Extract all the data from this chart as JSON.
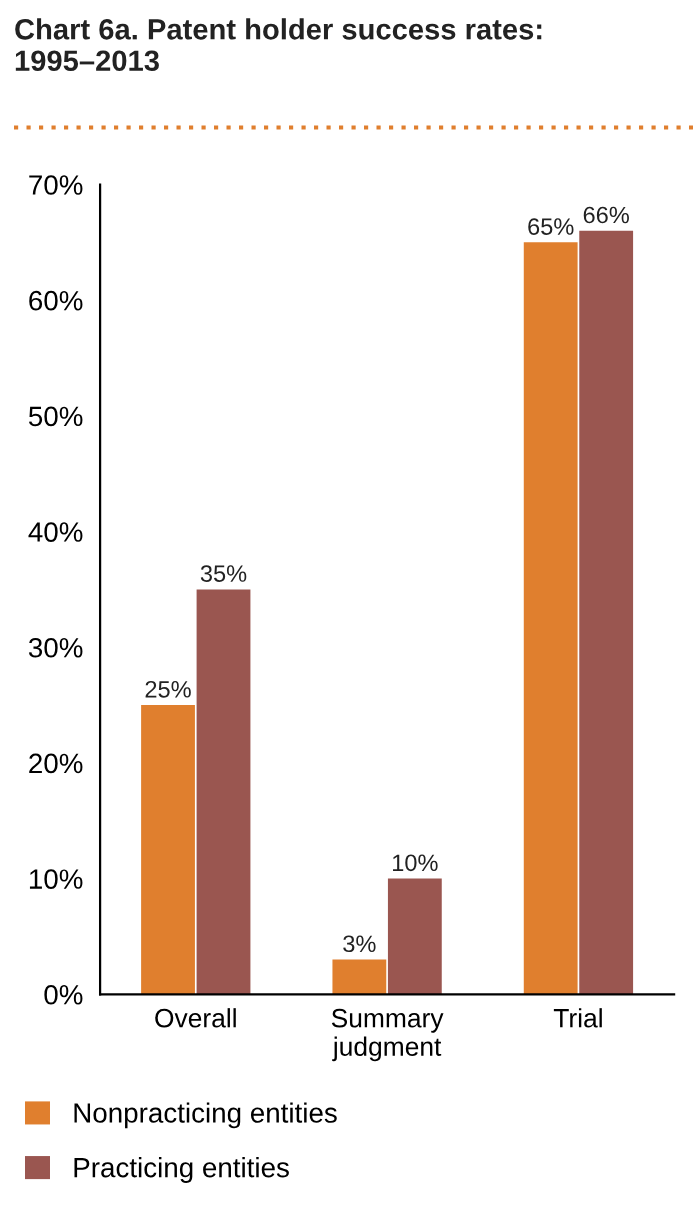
{
  "chart_data": {
    "type": "bar",
    "title": "Chart 6a. Patent holder success rates:\n1995–2013",
    "categories": [
      "Overall",
      "Summary judgment",
      "Trial"
    ],
    "series": [
      {
        "name": "Nonpracticing entities",
        "color": "#e07f2e",
        "values": [
          25,
          3,
          65
        ],
        "value_labels": [
          "25%",
          "3%",
          "65%"
        ]
      },
      {
        "name": "Practicing entities",
        "color": "#9a5650",
        "values": [
          35,
          10,
          66
        ],
        "value_labels": [
          "35%",
          "10%",
          "66%"
        ]
      }
    ],
    "ylim": [
      0,
      70
    ],
    "yticks": [
      {
        "value": 0,
        "label": "0%"
      },
      {
        "value": 10,
        "label": "10%"
      },
      {
        "value": 20,
        "label": "20%"
      },
      {
        "value": 30,
        "label": "30%"
      },
      {
        "value": 40,
        "label": "40%"
      },
      {
        "value": 50,
        "label": "50%"
      },
      {
        "value": 60,
        "label": "60%"
      },
      {
        "value": 70,
        "label": "70%"
      }
    ],
    "grid": false,
    "legend": "bottom"
  }
}
